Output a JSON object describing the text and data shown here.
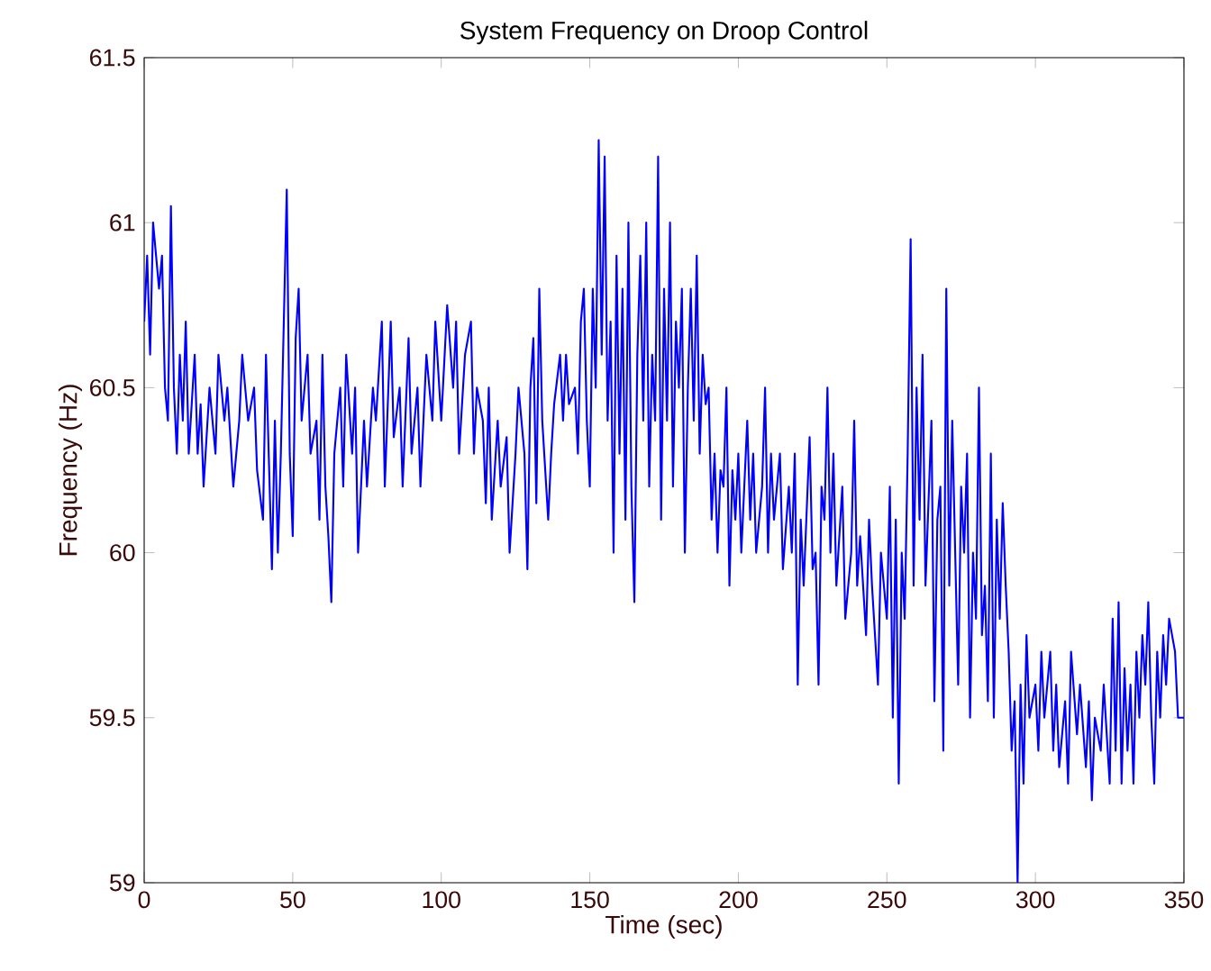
{
  "chart_data": {
    "type": "line",
    "title": "System Frequency on Droop Control",
    "xlabel": "Time (sec)",
    "ylabel": "Frequency (Hz)",
    "xlim": [
      0,
      350
    ],
    "ylim": [
      59,
      61.5
    ],
    "xticks": [
      0,
      50,
      100,
      150,
      200,
      250,
      300,
      350
    ],
    "yticks": [
      59,
      59.5,
      60,
      60.5,
      61,
      61.5
    ],
    "grid": false,
    "marker": "none",
    "line_style": "solid",
    "series": [
      {
        "color": "#0000ff",
        "x": [
          0,
          1,
          2,
          3,
          5,
          6,
          7,
          8,
          9,
          10,
          11,
          12,
          13,
          14,
          15,
          17,
          18,
          19,
          20,
          22,
          24,
          25,
          27,
          28,
          30,
          32,
          33,
          35,
          37,
          38,
          40,
          41,
          43,
          44,
          45,
          46,
          47,
          48,
          49,
          50,
          51,
          52,
          53,
          55,
          56,
          58,
          59,
          60,
          61,
          62,
          63,
          64,
          66,
          67,
          68,
          70,
          71,
          72,
          74,
          75,
          77,
          78,
          80,
          81,
          83,
          84,
          86,
          87,
          89,
          90,
          92,
          93,
          95,
          97,
          98,
          100,
          102,
          104,
          105,
          106,
          108,
          110,
          111,
          112,
          114,
          115,
          116,
          117,
          119,
          120,
          122,
          123,
          125,
          126,
          128,
          129,
          130,
          131,
          132,
          133,
          134,
          136,
          137,
          138,
          140,
          141,
          142,
          143,
          145,
          146,
          147,
          148,
          149,
          150,
          151,
          152,
          153,
          154,
          155,
          156,
          157,
          158,
          159,
          160,
          161,
          162,
          163,
          164,
          165,
          166,
          167,
          168,
          169,
          170,
          171,
          172,
          173,
          174,
          175,
          176,
          177,
          178,
          179,
          180,
          181,
          182,
          183,
          184,
          185,
          186,
          187,
          188,
          189,
          190,
          191,
          192,
          193,
          194,
          195,
          196,
          197,
          198,
          199,
          200,
          201,
          202,
          203,
          204,
          205,
          206,
          208,
          209,
          210,
          211,
          212,
          214,
          215,
          217,
          218,
          219,
          220,
          221,
          222,
          224,
          225,
          226,
          227,
          228,
          229,
          230,
          231,
          232,
          233,
          235,
          236,
          238,
          239,
          240,
          241,
          243,
          244,
          245,
          247,
          248,
          250,
          251,
          252,
          253,
          254,
          255,
          256,
          257,
          258,
          259,
          260,
          261,
          262,
          263,
          265,
          266,
          267,
          268,
          269,
          270,
          271,
          272,
          274,
          275,
          276,
          277,
          278,
          279,
          280,
          281,
          282,
          283,
          284,
          285,
          286,
          287,
          288,
          289,
          290,
          291,
          292,
          293,
          294,
          295,
          296,
          297,
          298,
          300,
          301,
          302,
          303,
          305,
          306,
          307,
          308,
          310,
          311,
          312,
          314,
          315,
          317,
          318,
          319,
          320,
          322,
          323,
          325,
          326,
          327,
          328,
          329,
          330,
          331,
          332,
          333,
          334,
          335,
          336,
          337,
          338,
          339,
          340,
          341,
          342,
          343,
          344,
          345,
          347,
          348,
          350
        ],
        "values": [
          60.7,
          60.9,
          60.6,
          61.0,
          60.8,
          60.9,
          60.5,
          60.4,
          61.05,
          60.5,
          60.3,
          60.6,
          60.4,
          60.7,
          60.3,
          60.6,
          60.3,
          60.45,
          60.2,
          60.5,
          60.3,
          60.6,
          60.4,
          60.5,
          60.2,
          60.4,
          60.6,
          60.4,
          60.5,
          60.25,
          60.1,
          60.6,
          59.95,
          60.4,
          60.0,
          60.3,
          60.7,
          61.1,
          60.3,
          60.05,
          60.65,
          60.8,
          60.4,
          60.6,
          60.3,
          60.4,
          60.1,
          60.6,
          60.2,
          60.05,
          59.85,
          60.3,
          60.5,
          60.2,
          60.6,
          60.3,
          60.5,
          60.0,
          60.4,
          60.2,
          60.5,
          60.4,
          60.7,
          60.2,
          60.7,
          60.35,
          60.5,
          60.2,
          60.65,
          60.3,
          60.5,
          60.2,
          60.6,
          60.4,
          60.7,
          60.4,
          60.75,
          60.5,
          60.7,
          60.3,
          60.6,
          60.7,
          60.3,
          60.5,
          60.4,
          60.15,
          60.5,
          60.1,
          60.4,
          60.2,
          60.35,
          60.0,
          60.3,
          60.5,
          60.3,
          59.95,
          60.5,
          60.65,
          60.15,
          60.8,
          60.4,
          60.1,
          60.3,
          60.45,
          60.6,
          60.4,
          60.6,
          60.45,
          60.5,
          60.3,
          60.7,
          60.8,
          60.4,
          60.2,
          60.8,
          60.5,
          61.25,
          60.6,
          61.2,
          60.4,
          60.7,
          60.0,
          60.9,
          60.3,
          60.8,
          60.1,
          61.0,
          60.2,
          59.85,
          60.6,
          60.9,
          60.4,
          61.0,
          60.2,
          60.6,
          60.4,
          61.2,
          60.1,
          60.8,
          60.4,
          61.0,
          60.2,
          60.7,
          60.5,
          60.8,
          60.0,
          60.5,
          60.8,
          60.4,
          60.9,
          60.3,
          60.6,
          60.45,
          60.5,
          60.1,
          60.3,
          60.0,
          60.25,
          60.2,
          60.5,
          59.9,
          60.25,
          60.1,
          60.3,
          60.0,
          60.2,
          60.4,
          60.1,
          60.3,
          60.0,
          60.2,
          60.5,
          60.0,
          60.3,
          60.1,
          60.3,
          59.95,
          60.2,
          60.0,
          60.3,
          59.6,
          60.1,
          59.9,
          60.35,
          59.95,
          60.0,
          59.6,
          60.2,
          60.1,
          60.5,
          60.0,
          60.3,
          59.9,
          60.2,
          59.8,
          60.0,
          60.4,
          59.9,
          60.05,
          59.75,
          60.1,
          59.9,
          59.6,
          60.0,
          59.8,
          60.2,
          59.5,
          60.1,
          59.3,
          60.0,
          59.8,
          60.3,
          60.95,
          59.9,
          60.5,
          60.1,
          60.6,
          59.9,
          60.4,
          59.55,
          60.1,
          60.2,
          59.4,
          60.8,
          59.9,
          60.4,
          59.6,
          60.2,
          60.0,
          60.3,
          59.5,
          60.0,
          59.8,
          60.5,
          59.75,
          59.9,
          59.55,
          60.3,
          59.5,
          60.1,
          59.8,
          60.15,
          59.9,
          59.7,
          59.4,
          59.55,
          59.0,
          59.6,
          59.3,
          59.75,
          59.5,
          59.6,
          59.4,
          59.7,
          59.5,
          59.7,
          59.4,
          59.6,
          59.35,
          59.55,
          59.3,
          59.7,
          59.45,
          59.6,
          59.35,
          59.55,
          59.25,
          59.5,
          59.4,
          59.6,
          59.3,
          59.8,
          59.4,
          59.85,
          59.3,
          59.65,
          59.4,
          59.6,
          59.3,
          59.7,
          59.5,
          59.75,
          59.6,
          59.85,
          59.5,
          59.3,
          59.7,
          59.5,
          59.75,
          59.6,
          59.8,
          59.7,
          59.5,
          59.5
        ]
      }
    ]
  }
}
